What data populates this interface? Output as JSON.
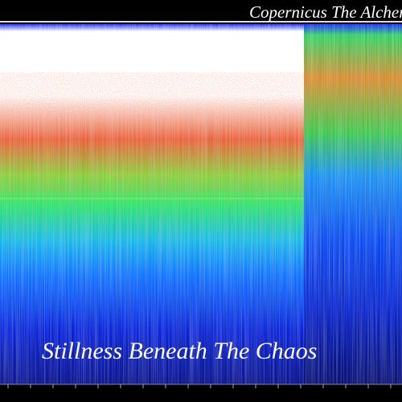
{
  "artist": "Copernicus The Alchemist",
  "title": "Stillness Beneath The Chaos"
}
